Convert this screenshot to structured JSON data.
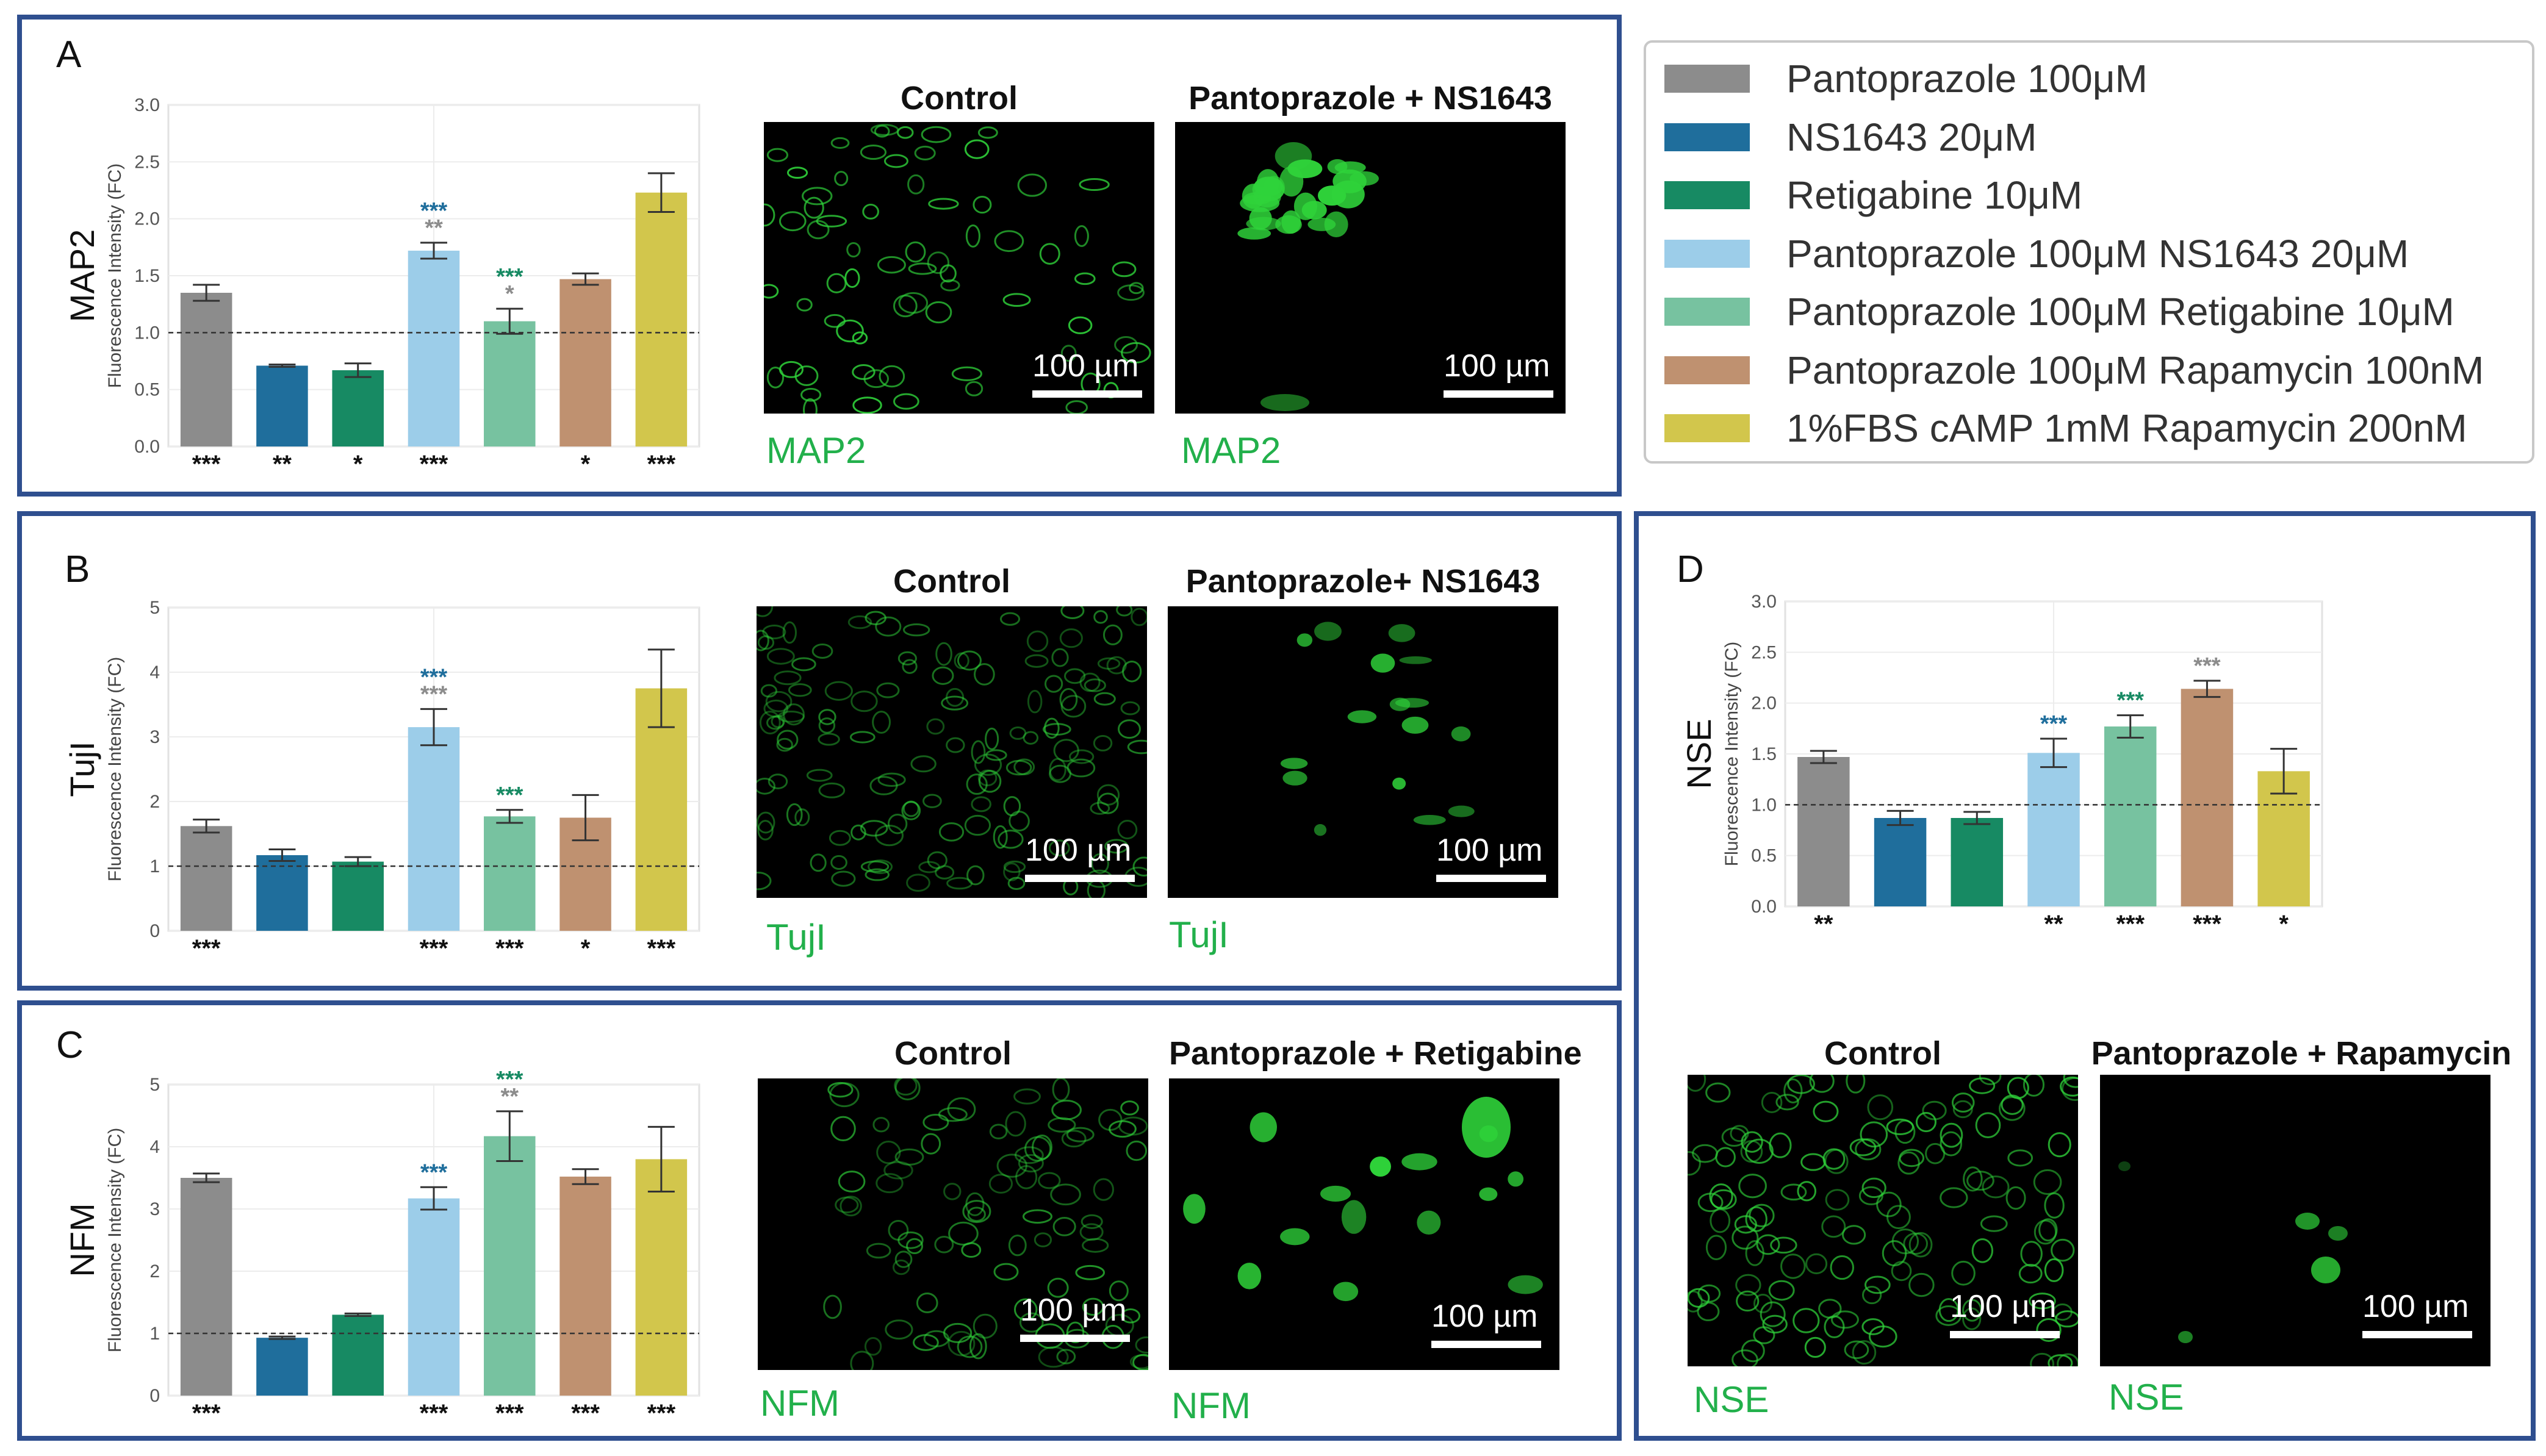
{
  "colors": {
    "pantoprazole": "#8c8c8c",
    "ns1643": "#1f6e9c",
    "retigabine": "#178a63",
    "panto_ns1643": "#9ccde9",
    "panto_retigabine": "#77c2a0",
    "panto_rapamycin": "#bf9170",
    "fbs_camp_rapamycin": "#d2c64c",
    "border": "#2f4f8f",
    "marker_text": "#22b04b"
  },
  "legend": [
    {
      "label": "Pantoprazole 100μM",
      "color": "#8c8c8c"
    },
    {
      "label": "NS1643 20μM",
      "color": "#1f6e9c"
    },
    {
      "label": "Retigabine 10μM",
      "color": "#178a63"
    },
    {
      "label": "Pantoprazole 100μM NS1643 20μM",
      "color": "#9ccde9"
    },
    {
      "label": "Pantoprazole 100μM Retigabine 10μM",
      "color": "#77c2a0"
    },
    {
      "label": "Pantoprazole 100μM Rapamycin 100nM",
      "color": "#bf9170"
    },
    {
      "label": "1%FBS cAMP 1mM Rapamycin 200nM",
      "color": "#d2c64c"
    }
  ],
  "panels": {
    "A": {
      "label": "A",
      "marker": "MAP2",
      "left_title": "Control",
      "right_title": "Pantoprazole + NS1643",
      "left_marker": "MAP2",
      "right_marker": "MAP2",
      "scale_left": "100 µm",
      "scale_right": "100 µm"
    },
    "B": {
      "label": "B",
      "marker": "TujI",
      "left_title": "Control",
      "right_title": "Pantoprazole+ NS1643",
      "left_marker": "TujI",
      "right_marker": "TujI",
      "scale_left": "100 µm",
      "scale_right": "100 µm"
    },
    "C": {
      "label": "C",
      "marker": "NFM",
      "left_title": "Control",
      "right_title": "Pantoprazole + Retigabine",
      "left_marker": "NFM",
      "right_marker": "NFM",
      "scale_left": "100 µm",
      "scale_right": "100 µm"
    },
    "D": {
      "label": "D",
      "marker": "NSE",
      "left_title": "Control",
      "right_title": "Pantoprazole + Rapamycin",
      "left_marker": "NSE",
      "right_marker": "NSE",
      "scale_left": "100 µm",
      "scale_right": "100 µm"
    }
  },
  "chart_data": [
    {
      "id": "A",
      "type": "bar",
      "ylabel": "Fluorescence Intensity (FC)",
      "side_label": "MAP2",
      "ylim": [
        0,
        3.0
      ],
      "yticks": [
        "0.0",
        "0.5",
        "1.0",
        "1.5",
        "2.0",
        "2.5",
        "3.0"
      ],
      "ytick_values": [
        0,
        0.5,
        1,
        1.5,
        2,
        2.5,
        3
      ],
      "reference_line": 1.0,
      "values": [
        1.35,
        0.71,
        0.67,
        1.72,
        1.1,
        1.47,
        2.23
      ],
      "errors": [
        0.07,
        0.01,
        0.06,
        0.07,
        0.11,
        0.05,
        0.17
      ],
      "colors": [
        "#8c8c8c",
        "#1f6e9c",
        "#178a63",
        "#9ccde9",
        "#77c2a0",
        "#bf9170",
        "#d2c64c"
      ],
      "bottom_sig": [
        "***",
        "**",
        "*",
        "***",
        "",
        "*",
        "***"
      ],
      "top_sig": [
        [],
        [],
        [],
        [
          {
            "text": "***",
            "color": "#1f6e9c"
          },
          {
            "text": "**",
            "color": "#8c8c8c"
          }
        ],
        [
          {
            "text": "***",
            "color": "#178a63"
          },
          {
            "text": "*",
            "color": "#8c8c8c"
          }
        ],
        [],
        []
      ]
    },
    {
      "id": "B",
      "type": "bar",
      "ylabel": "Fluorescence Intensity (FC)",
      "side_label": "TujI",
      "ylim": [
        0,
        5
      ],
      "yticks": [
        "0",
        "1",
        "2",
        "3",
        "4",
        "5"
      ],
      "ytick_values": [
        0,
        1,
        2,
        3,
        4,
        5
      ],
      "reference_line": 1.0,
      "values": [
        1.62,
        1.17,
        1.07,
        3.15,
        1.77,
        1.75,
        3.75
      ],
      "errors": [
        0.1,
        0.09,
        0.07,
        0.28,
        0.1,
        0.35,
        0.6
      ],
      "colors": [
        "#8c8c8c",
        "#1f6e9c",
        "#178a63",
        "#9ccde9",
        "#77c2a0",
        "#bf9170",
        "#d2c64c"
      ],
      "bottom_sig": [
        "***",
        "",
        "",
        "***",
        "***",
        "*",
        "***"
      ],
      "top_sig": [
        [],
        [],
        [],
        [
          {
            "text": "***",
            "color": "#1f6e9c"
          },
          {
            "text": "***",
            "color": "#8c8c8c"
          }
        ],
        [
          {
            "text": "***",
            "color": "#178a63"
          }
        ],
        [],
        []
      ]
    },
    {
      "id": "C",
      "type": "bar",
      "ylabel": "Fluorescence Intensity (FC)",
      "side_label": "NFM",
      "ylim": [
        0,
        5
      ],
      "yticks": [
        "0",
        "1",
        "2",
        "3",
        "4",
        "5"
      ],
      "ytick_values": [
        0,
        1,
        2,
        3,
        4,
        5
      ],
      "reference_line": 1.0,
      "values": [
        3.5,
        0.93,
        1.3,
        3.17,
        4.17,
        3.52,
        3.8
      ],
      "errors": [
        0.07,
        0.02,
        0.02,
        0.18,
        0.4,
        0.12,
        0.52
      ],
      "colors": [
        "#8c8c8c",
        "#1f6e9c",
        "#178a63",
        "#9ccde9",
        "#77c2a0",
        "#bf9170",
        "#d2c64c"
      ],
      "bottom_sig": [
        "***",
        "",
        "",
        "***",
        "***",
        "***",
        "***"
      ],
      "top_sig": [
        [],
        [],
        [],
        [
          {
            "text": "***",
            "color": "#1f6e9c"
          }
        ],
        [
          {
            "text": "***",
            "color": "#178a63"
          },
          {
            "text": "**",
            "color": "#8c8c8c"
          }
        ],
        [],
        []
      ]
    },
    {
      "id": "D",
      "type": "bar",
      "ylabel": "Fluorescence Intensity (FC)",
      "side_label": "NSE",
      "ylim": [
        0,
        3.0
      ],
      "yticks": [
        "0.0",
        "0.5",
        "1.0",
        "1.5",
        "2.0",
        "2.5",
        "3.0"
      ],
      "ytick_values": [
        0,
        0.5,
        1,
        1.5,
        2,
        2.5,
        3
      ],
      "reference_line": 1.0,
      "values": [
        1.47,
        0.87,
        0.87,
        1.51,
        1.77,
        2.14,
        1.33
      ],
      "errors": [
        0.06,
        0.07,
        0.06,
        0.14,
        0.11,
        0.08,
        0.22
      ],
      "colors": [
        "#8c8c8c",
        "#1f6e9c",
        "#178a63",
        "#9ccde9",
        "#77c2a0",
        "#bf9170",
        "#d2c64c"
      ],
      "bottom_sig": [
        "**",
        "",
        "",
        "**",
        "***",
        "***",
        "*"
      ],
      "top_sig": [
        [],
        [],
        [],
        [
          {
            "text": "***",
            "color": "#1f6e9c"
          }
        ],
        [
          {
            "text": "***",
            "color": "#178a63"
          }
        ],
        [
          {
            "text": "***",
            "color": "#8c8c8c"
          }
        ],
        []
      ]
    }
  ]
}
